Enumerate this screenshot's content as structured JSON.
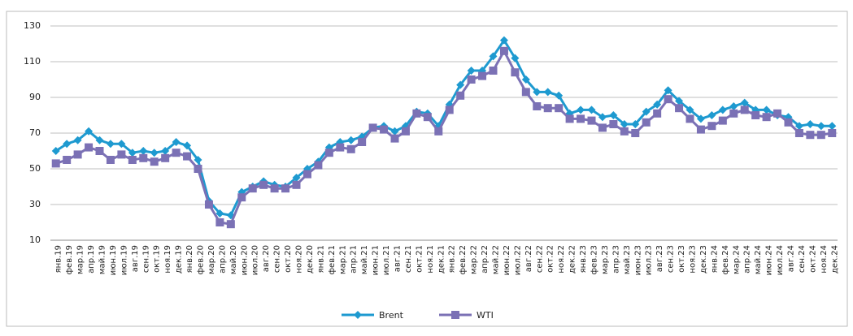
{
  "chart_data": {
    "type": "line",
    "categories": [
      "янв.19",
      "фев.19",
      "мар.19",
      "апр.19",
      "май.19",
      "июн.19",
      "июл.19",
      "авг.19",
      "сен.19",
      "окт.19",
      "ноя.19",
      "дек.19",
      "янв.20",
      "фев.20",
      "мар.20",
      "апр.20",
      "май.20",
      "июн.20",
      "июл.20",
      "авг.20",
      "сен.20",
      "окт.20",
      "ноя.20",
      "дек.20",
      "янв.21",
      "фев.21",
      "мар.21",
      "апр.21",
      "май.21",
      "июн.21",
      "июл.21",
      "авг.21",
      "сен.21",
      "окт.21",
      "ноя.21",
      "дек.21",
      "янв.22",
      "фев.22",
      "мар.22",
      "апр.22",
      "май.22",
      "июн.22",
      "июл.22",
      "авг.22",
      "сен.22",
      "окт.22",
      "ноя.22",
      "дек.22",
      "янв.23",
      "фев.23",
      "мар.23",
      "апр.23",
      "май.23",
      "июн.23",
      "июл.23",
      "авг.23",
      "сен.23",
      "окт.23",
      "ноя.23",
      "дек.23",
      "янв.24",
      "фев.24",
      "мар.24",
      "апр.24",
      "май.24",
      "июн.24",
      "июл.24",
      "авг.24",
      "сен.24",
      "окт.24",
      "ноя.24",
      "дек.24"
    ],
    "series": [
      {
        "name": "Brent",
        "color": "#1e9ad0",
        "marker": "diamond",
        "values": [
          60,
          64,
          66,
          71,
          66,
          64,
          64,
          59,
          60,
          59,
          60,
          65,
          63,
          55,
          32,
          25,
          24,
          37,
          40,
          43,
          41,
          40,
          45,
          50,
          54,
          62,
          65,
          66,
          68,
          73,
          74,
          71,
          74,
          82,
          81,
          74,
          86,
          97,
          105,
          105,
          113,
          122,
          112,
          100,
          93,
          93,
          91,
          81,
          83,
          83,
          79,
          80,
          75,
          75,
          82,
          86,
          94,
          88,
          83,
          78,
          80,
          83,
          85,
          87,
          83,
          83,
          80,
          79,
          74,
          75,
          74,
          74
        ]
      },
      {
        "name": "WTI",
        "color": "#7b71b5",
        "marker": "square",
        "values": [
          53,
          55,
          58,
          62,
          60,
          55,
          58,
          55,
          56,
          54,
          56,
          59,
          57,
          50,
          30,
          20,
          19,
          34,
          39,
          41,
          39,
          39,
          41,
          47,
          52,
          59,
          62,
          61,
          65,
          73,
          72,
          67,
          71,
          81,
          79,
          71,
          83,
          91,
          100,
          102,
          105,
          116,
          104,
          93,
          85,
          84,
          84,
          78,
          78,
          77,
          73,
          75,
          71,
          70,
          76,
          81,
          89,
          84,
          78,
          72,
          74,
          77,
          81,
          83,
          80,
          79,
          81,
          76,
          70,
          69,
          69,
          70
        ]
      }
    ],
    "ylim": [
      10,
      130
    ],
    "yticks": [
      10,
      30,
      50,
      70,
      90,
      110,
      130
    ],
    "grid": true,
    "legend": "bottom"
  }
}
